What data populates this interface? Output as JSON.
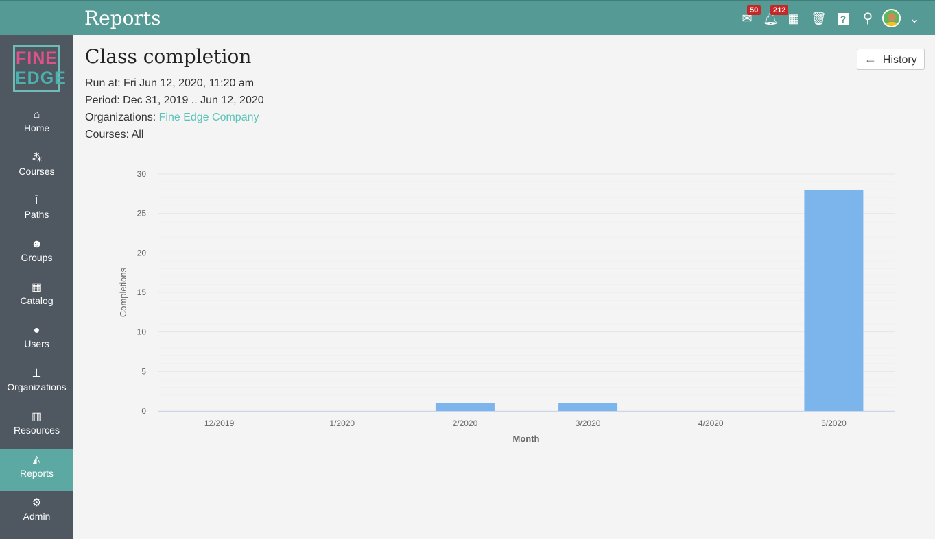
{
  "header": {
    "title": "Reports",
    "mail_badge": "50",
    "notif_badge": "212",
    "icons": [
      "mail-icon",
      "bell-icon",
      "calendar-icon",
      "trash-icon",
      "help-icon",
      "search-icon",
      "avatar",
      "chevron-down-icon"
    ]
  },
  "sidebar": {
    "logo": [
      "FINE",
      "EDGE"
    ],
    "items": [
      {
        "label": "Home",
        "icon": "⌂"
      },
      {
        "label": "Courses",
        "icon": "⁂"
      },
      {
        "label": "Paths",
        "icon": "⍑"
      },
      {
        "label": "Groups",
        "icon": "☻"
      },
      {
        "label": "Catalog",
        "icon": "▦"
      },
      {
        "label": "Users",
        "icon": "●"
      },
      {
        "label": "Organizations",
        "icon": "⊥"
      },
      {
        "label": "Resources",
        "icon": "▥"
      },
      {
        "label": "Reports",
        "icon": "◭",
        "active": true
      },
      {
        "label": "Admin",
        "icon": "⚙"
      }
    ]
  },
  "main": {
    "title": "Class completion",
    "run_at_label": "Run at:",
    "run_at": "Fri Jun 12, 2020, 11:20 am",
    "period_label": "Period:",
    "period": "Dec 31, 2019 .. Jun 12, 2020",
    "orgs_label": "Organizations:",
    "orgs": "Fine Edge Company",
    "courses_label": "Courses:",
    "courses": "All",
    "history_label": "History"
  },
  "chart_data": {
    "type": "bar",
    "categories": [
      "12/2019",
      "1/2020",
      "2/2020",
      "3/2020",
      "4/2020",
      "5/2020"
    ],
    "values": [
      0,
      0,
      1,
      1,
      0,
      28
    ],
    "xlabel": "Month",
    "ylabel": "Completions",
    "ylim": [
      0,
      30
    ],
    "yticks": [
      0,
      5,
      10,
      15,
      20,
      25,
      30
    ],
    "grid": true,
    "bar_color": "#7cb5ec"
  }
}
